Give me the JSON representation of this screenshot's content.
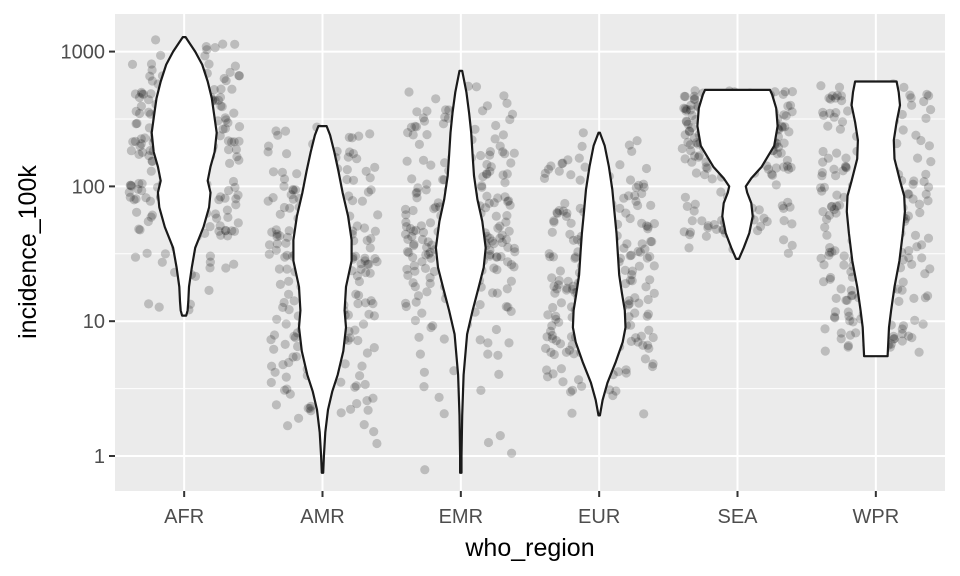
{
  "chart_data": {
    "type": "violin",
    "xlabel": "who_region",
    "ylabel": "incidence_100k",
    "yscale": "log10",
    "ylim": [
      0.55,
      1900
    ],
    "y_ticks": [
      {
        "value": 1,
        "label": "1"
      },
      {
        "value": 10,
        "label": "10"
      },
      {
        "value": 100,
        "label": "100"
      },
      {
        "value": 1000,
        "label": "1000"
      }
    ],
    "y_minor_ticks": [
      3.162,
      31.62,
      316.2
    ],
    "categories": [
      "AFR",
      "AMR",
      "EMR",
      "EUR",
      "SEA",
      "WPR"
    ],
    "grid": true,
    "points": "jittered semi-transparent black points per country-year",
    "violins": [
      {
        "category": "AFR",
        "range": [
          11,
          1280
        ],
        "profile": [
          [
            11,
            0.03
          ],
          [
            12,
            0.05
          ],
          [
            14,
            0.06
          ],
          [
            18,
            0.07
          ],
          [
            25,
            0.11
          ],
          [
            35,
            0.16
          ],
          [
            50,
            0.28
          ],
          [
            70,
            0.36
          ],
          [
            90,
            0.38
          ],
          [
            110,
            0.34
          ],
          [
            140,
            0.38
          ],
          [
            180,
            0.44
          ],
          [
            250,
            0.47
          ],
          [
            350,
            0.43
          ],
          [
            450,
            0.4
          ],
          [
            600,
            0.34
          ],
          [
            800,
            0.26
          ],
          [
            1000,
            0.16
          ],
          [
            1150,
            0.08
          ],
          [
            1280,
            0.02
          ]
        ]
      },
      {
        "category": "AMR",
        "range": [
          0.75,
          280
        ],
        "profile": [
          [
            0.75,
            0.01
          ],
          [
            1,
            0.02
          ],
          [
            1.5,
            0.04
          ],
          [
            2.2,
            0.08
          ],
          [
            3,
            0.14
          ],
          [
            4,
            0.22
          ],
          [
            6,
            0.3
          ],
          [
            9,
            0.34
          ],
          [
            12,
            0.32
          ],
          [
            18,
            0.34
          ],
          [
            28,
            0.42
          ],
          [
            40,
            0.42
          ],
          [
            60,
            0.37
          ],
          [
            90,
            0.29
          ],
          [
            130,
            0.23
          ],
          [
            180,
            0.17
          ],
          [
            240,
            0.11
          ],
          [
            280,
            0.06
          ]
        ]
      },
      {
        "category": "EMR",
        "range": [
          0.75,
          720
        ],
        "profile": [
          [
            0.75,
            0.01
          ],
          [
            1,
            0.01
          ],
          [
            2,
            0.02
          ],
          [
            4,
            0.04
          ],
          [
            8,
            0.09
          ],
          [
            12,
            0.17
          ],
          [
            18,
            0.26
          ],
          [
            25,
            0.33
          ],
          [
            35,
            0.36
          ],
          [
            55,
            0.31
          ],
          [
            80,
            0.24
          ],
          [
            120,
            0.19
          ],
          [
            170,
            0.17
          ],
          [
            250,
            0.15
          ],
          [
            350,
            0.12
          ],
          [
            500,
            0.08
          ],
          [
            720,
            0.02
          ]
        ]
      },
      {
        "category": "EUR",
        "range": [
          2,
          250
        ],
        "profile": [
          [
            2,
            0.01
          ],
          [
            2.6,
            0.05
          ],
          [
            3.5,
            0.12
          ],
          [
            5,
            0.24
          ],
          [
            7,
            0.34
          ],
          [
            9,
            0.38
          ],
          [
            12,
            0.37
          ],
          [
            16,
            0.33
          ],
          [
            22,
            0.29
          ],
          [
            32,
            0.27
          ],
          [
            45,
            0.25
          ],
          [
            65,
            0.22
          ],
          [
            95,
            0.19
          ],
          [
            140,
            0.14
          ],
          [
            200,
            0.08
          ],
          [
            250,
            0.01
          ]
        ]
      },
      {
        "category": "SEA",
        "range": [
          29,
          520
        ],
        "profile": [
          [
            29,
            0.02
          ],
          [
            35,
            0.09
          ],
          [
            45,
            0.17
          ],
          [
            60,
            0.22
          ],
          [
            75,
            0.2
          ],
          [
            90,
            0.14
          ],
          [
            100,
            0.12
          ],
          [
            115,
            0.2
          ],
          [
            140,
            0.35
          ],
          [
            200,
            0.53
          ],
          [
            280,
            0.58
          ],
          [
            380,
            0.56
          ],
          [
            480,
            0.5
          ],
          [
            520,
            0.47
          ]
        ]
      },
      {
        "category": "WPR",
        "range": [
          5.5,
          600
        ],
        "profile": [
          [
            5.5,
            0.17
          ],
          [
            7,
            0.18
          ],
          [
            9,
            0.19
          ],
          [
            12,
            0.22
          ],
          [
            18,
            0.27
          ],
          [
            28,
            0.34
          ],
          [
            45,
            0.39
          ],
          [
            65,
            0.42
          ],
          [
            85,
            0.41
          ],
          [
            110,
            0.35
          ],
          [
            160,
            0.27
          ],
          [
            220,
            0.26
          ],
          [
            300,
            0.3
          ],
          [
            400,
            0.35
          ],
          [
            500,
            0.33
          ],
          [
            600,
            0.3
          ]
        ]
      }
    ]
  }
}
